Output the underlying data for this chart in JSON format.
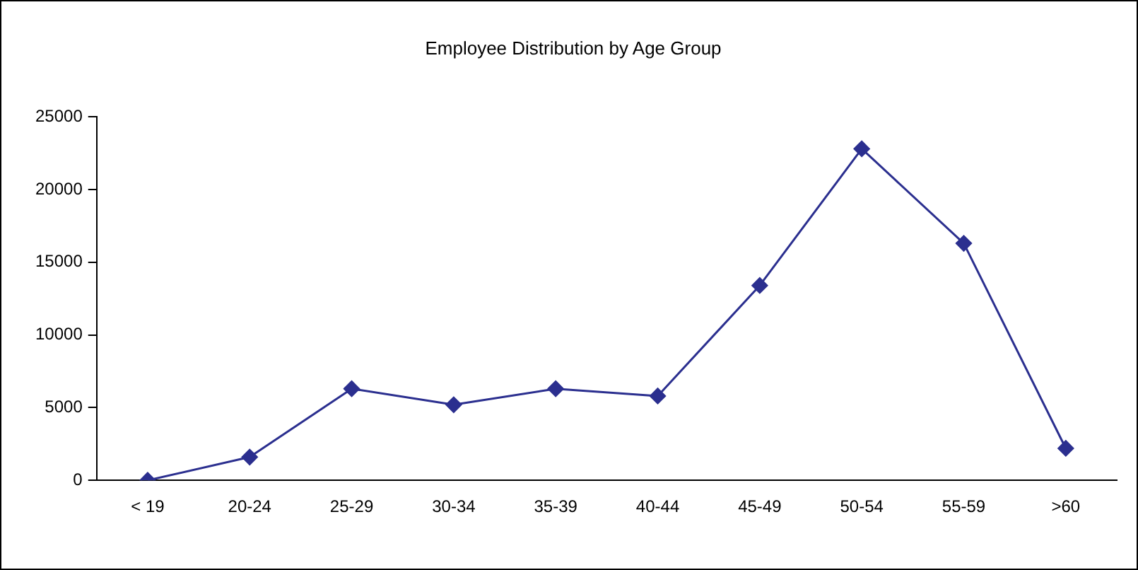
{
  "chart_data": {
    "type": "line",
    "title": "Employee Distribution by Age Group",
    "categories": [
      "< 19",
      "20-24",
      "25-29",
      "30-34",
      "35-39",
      "40-44",
      "45-49",
      "50-54",
      "55-59",
      ">60"
    ],
    "series": [
      {
        "color": "#2b2f8f",
        "values": [
          0,
          1600,
          6300,
          5200,
          6300,
          5800,
          13400,
          22800,
          16300,
          2200
        ]
      }
    ],
    "ylim": [
      0,
      25000
    ],
    "yticks": [
      0,
      5000,
      10000,
      15000,
      20000,
      25000
    ],
    "grid": false,
    "legend": false,
    "marker": "diamond",
    "line_style": "solid"
  }
}
